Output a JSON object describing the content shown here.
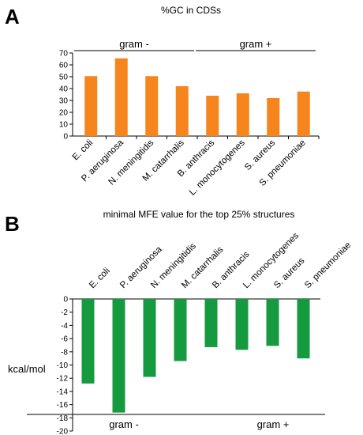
{
  "chart_data": [
    {
      "panel": "A",
      "type": "bar",
      "title": "%GC in CDSs",
      "categories": [
        "E. coli",
        "P. aeruginosa",
        "N. meningitidis",
        "M. catarrhalis",
        "B. anthracis",
        "L. monocytogenes",
        "S. aureus",
        "S. pneumoniae"
      ],
      "values": [
        50.5,
        65.5,
        50.5,
        42,
        34,
        36,
        32,
        37.5
      ],
      "ylim": [
        0,
        70
      ],
      "yticks": [
        0,
        10,
        20,
        30,
        40,
        50,
        60,
        70
      ],
      "ylabel": "",
      "xlabel": "",
      "groups": [
        {
          "label": "gram -",
          "from": 0,
          "to": 3
        },
        {
          "label": "gram +",
          "from": 4,
          "to": 7
        }
      ],
      "color": "#F7851E",
      "grid": false
    },
    {
      "panel": "B",
      "type": "bar",
      "title": "minimal MFE value for the top 25% structures",
      "categories": [
        "E. coli",
        "P. aeruginosa",
        "N. meningitidis",
        "M. catarrhalis",
        "B. anthracis",
        "L. monocytogenes",
        "S. aureus",
        "S. pneumoniae"
      ],
      "values": [
        -12.8,
        -17.2,
        -11.8,
        -9.4,
        -7.3,
        -7.7,
        -7.1,
        -9.0
      ],
      "ylim": [
        -20,
        0
      ],
      "yticks": [
        0,
        -2,
        -4,
        -6,
        -8,
        -10,
        -12,
        -14,
        -16,
        -18,
        -20
      ],
      "ylabel": "kcal/mol",
      "xlabel": "",
      "groups": [
        {
          "label": "gram -",
          "from": 0,
          "to": 3
        },
        {
          "label": "gram +",
          "from": 4,
          "to": 7
        }
      ],
      "color": "#169A3F",
      "grid": false
    }
  ]
}
